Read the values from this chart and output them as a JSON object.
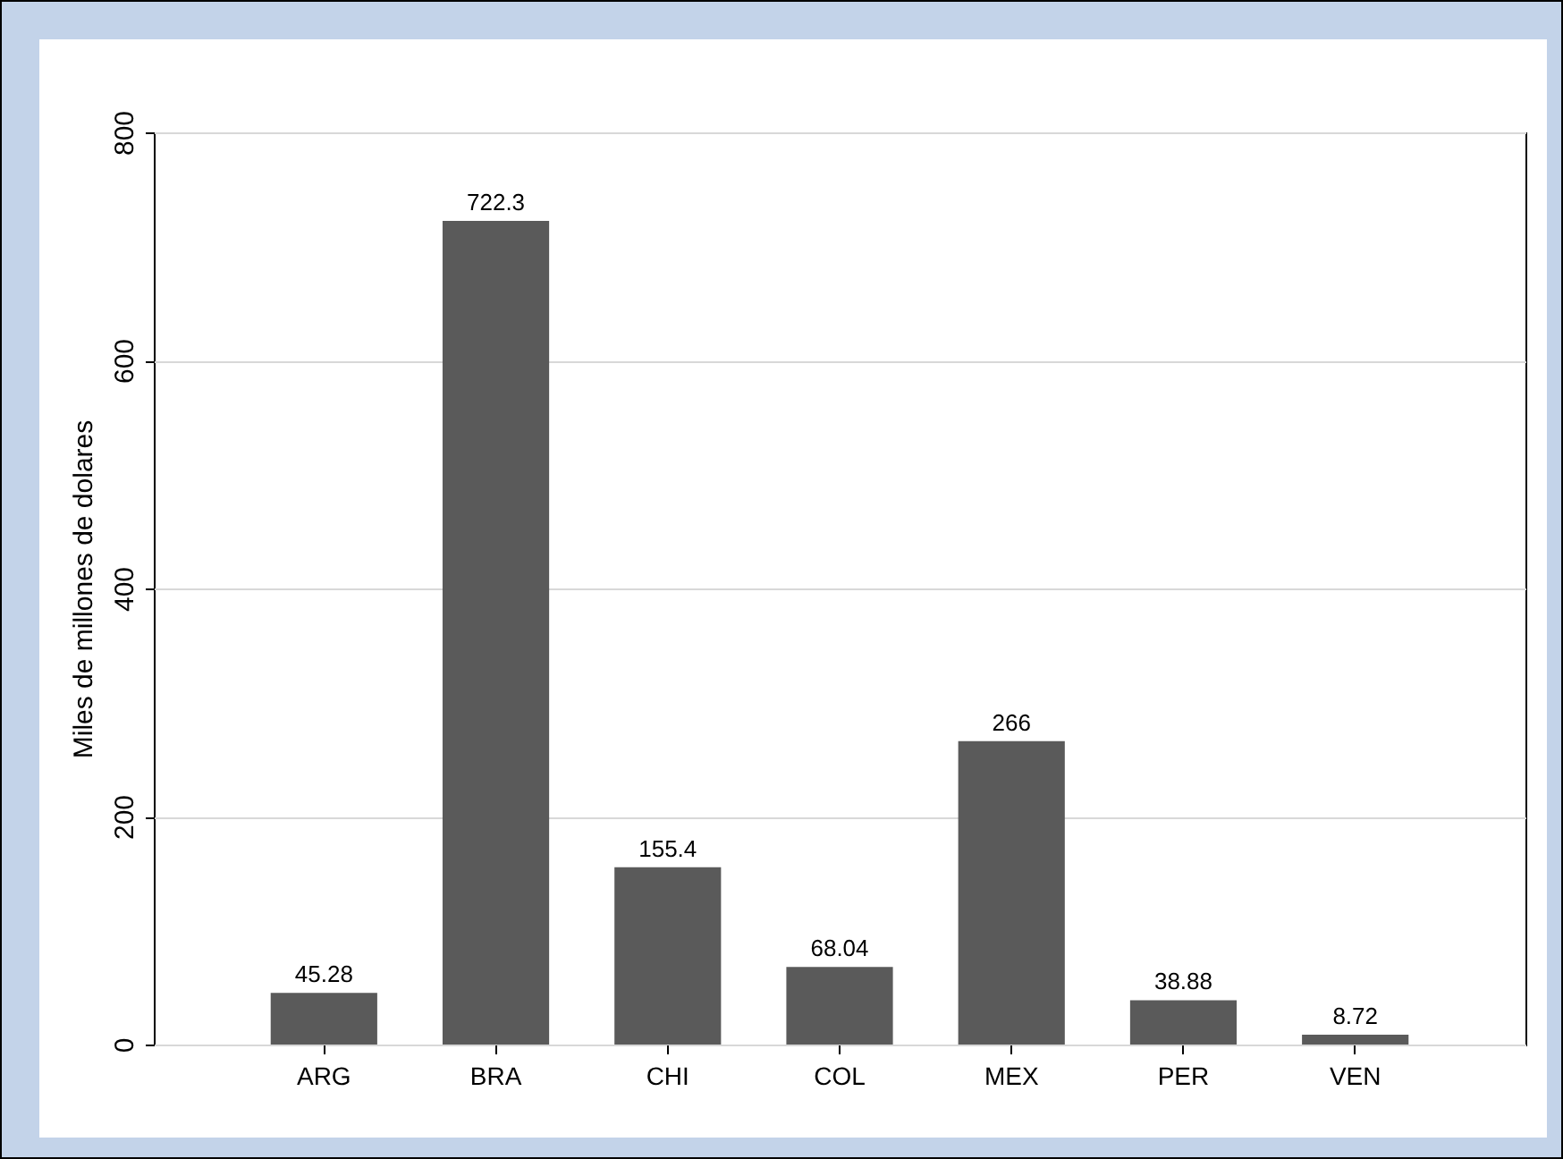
{
  "chart_data": {
    "type": "bar",
    "ylabel": "Miles de millones de dolares",
    "categories": [
      "ARG",
      "BRA",
      "CHI",
      "COL",
      "MEX",
      "PER",
      "VEN"
    ],
    "values": [
      45.28,
      722.3,
      155.4,
      68.04,
      266,
      38.88,
      8.72
    ],
    "color": "#5a5a5a",
    "ylim": [
      0,
      800
    ],
    "yticks": [
      0,
      200,
      400,
      600,
      800
    ],
    "grid": true,
    "data_labels": true
  }
}
